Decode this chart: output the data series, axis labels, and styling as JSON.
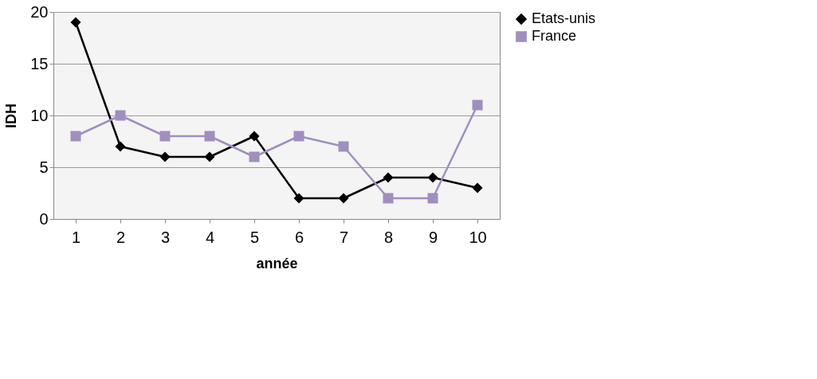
{
  "chart_data": {
    "type": "line",
    "xlabel": "année",
    "ylabel": "IDH",
    "categories": [
      "1",
      "2",
      "3",
      "4",
      "5",
      "6",
      "7",
      "8",
      "9",
      "10"
    ],
    "series": [
      {
        "name": "Etats-unis",
        "color": "#000000",
        "marker": "diamond",
        "values": [
          19,
          7,
          6,
          6,
          8,
          2,
          2,
          4,
          4,
          3
        ]
      },
      {
        "name": "France",
        "color": "#9f8fbf",
        "marker": "square",
        "values": [
          8,
          10,
          8,
          8,
          6,
          8,
          7,
          2,
          2,
          11
        ]
      }
    ],
    "ylim": [
      0,
      20
    ],
    "yticks": [
      0,
      5,
      10,
      15,
      20
    ],
    "grid": "y",
    "legend": "right",
    "line_style": "solid"
  }
}
